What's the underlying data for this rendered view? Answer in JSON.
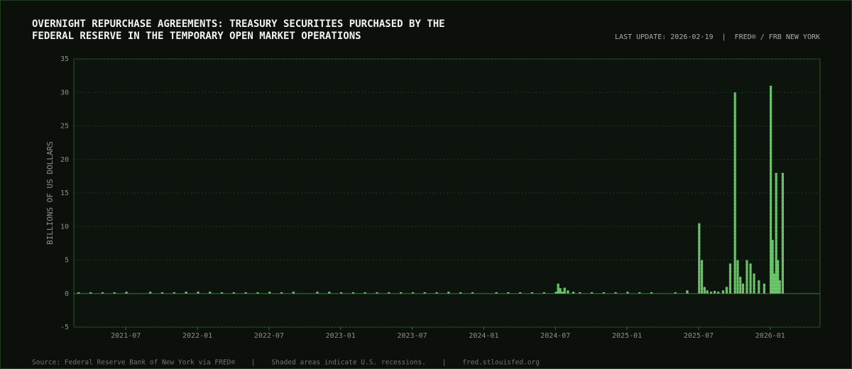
{
  "chart_data": {
    "type": "bar",
    "title": [
      "OVERNIGHT REPURCHASE AGREEMENTS: TREASURY SECURITIES PURCHASED BY THE",
      "FEDERAL RESERVE IN THE TEMPORARY OPEN MARKET OPERATIONS"
    ],
    "update_note": "LAST UPDATE: 2026-02-19  |  FRED® / FRB NEW YORK",
    "y_label": "BILLIONS OF US DOLLARS",
    "footer": "Source: Federal Reserve Bank of New York via FRED®    |    Shaded areas indicate U.S. recessions.    |    fred.stlouisfed.org",
    "color": "#7ee07e",
    "x": [
      "2021-03",
      "2021-04",
      "2021-05",
      "2021-06",
      "2021-07",
      "2021-09",
      "2021-10",
      "2021-11",
      "2021-12",
      "2022-01",
      "2022-02",
      "2022-03",
      "2022-04",
      "2022-05",
      "2022-06",
      "2022-07",
      "2022-08",
      "2022-09",
      "2022-11",
      "2022-12",
      "2023-01",
      "2023-02",
      "2023-03",
      "2023-04",
      "2023-05",
      "2023-06",
      "2023-07",
      "2023-08",
      "2023-09",
      "2023-10",
      "2023-11",
      "2023-12",
      "2024-02",
      "2024-03",
      "2024-04",
      "2024-05",
      "2024-06",
      "2024-07",
      "2024-07",
      "2024-07",
      "2024-07",
      "2024-07",
      "2024-08",
      "2024-08",
      "2024-09",
      "2024-10",
      "2024-11",
      "2024-12",
      "2025-01",
      "2025-02",
      "2025-03",
      "2025-05",
      "2025-06",
      "2025-07",
      "2025-07",
      "2025-07",
      "2025-07",
      "2025-08",
      "2025-08",
      "2025-08",
      "2025-09",
      "2025-09",
      "2025-09",
      "2025-10",
      "2025-10",
      "2025-10",
      "2025-10",
      "2025-11",
      "2025-11",
      "2025-11",
      "2025-12",
      "2025-12",
      "2026-01",
      "2026-01",
      "2026-01",
      "2026-01",
      "2026-01",
      "2026-01",
      "2026-02"
    ],
    "values": [
      0.2,
      0.2,
      0.2,
      0.2,
      0.3,
      0.3,
      0.2,
      0.2,
      0.3,
      0.3,
      0.3,
      0.2,
      0.2,
      0.2,
      0.2,
      0.3,
      0.2,
      0.3,
      0.3,
      0.3,
      0.2,
      0.2,
      0.2,
      0.2,
      0.2,
      0.2,
      0.2,
      0.2,
      0.2,
      0.3,
      0.2,
      0.2,
      0.2,
      0.2,
      0.2,
      0.2,
      0.2,
      0.3,
      1.5,
      0.8,
      0.3,
      0.9,
      0.5,
      0.3,
      0.2,
      0.2,
      0.2,
      0.2,
      0.3,
      0.2,
      0.2,
      0.2,
      0.5,
      10.5,
      5,
      1,
      0.5,
      0.3,
      0.4,
      0.3,
      0.5,
      1,
      4.5,
      30,
      5,
      2.5,
      1.5,
      5,
      4.5,
      3,
      2,
      1.5,
      31,
      8,
      3,
      18,
      5,
      2,
      18
    ],
    "xlim": [
      "2021-03",
      "2026-05"
    ],
    "xticks": [
      "2021-07",
      "2022-01",
      "2022-07",
      "2023-01",
      "2023-07",
      "2024-01",
      "2024-07",
      "2025-01",
      "2025-07",
      "2026-01"
    ],
    "ylim": [
      -5,
      35
    ],
    "yticks": [
      -5,
      0,
      5,
      10,
      15,
      20,
      25,
      30,
      35
    ],
    "grid": true
  }
}
